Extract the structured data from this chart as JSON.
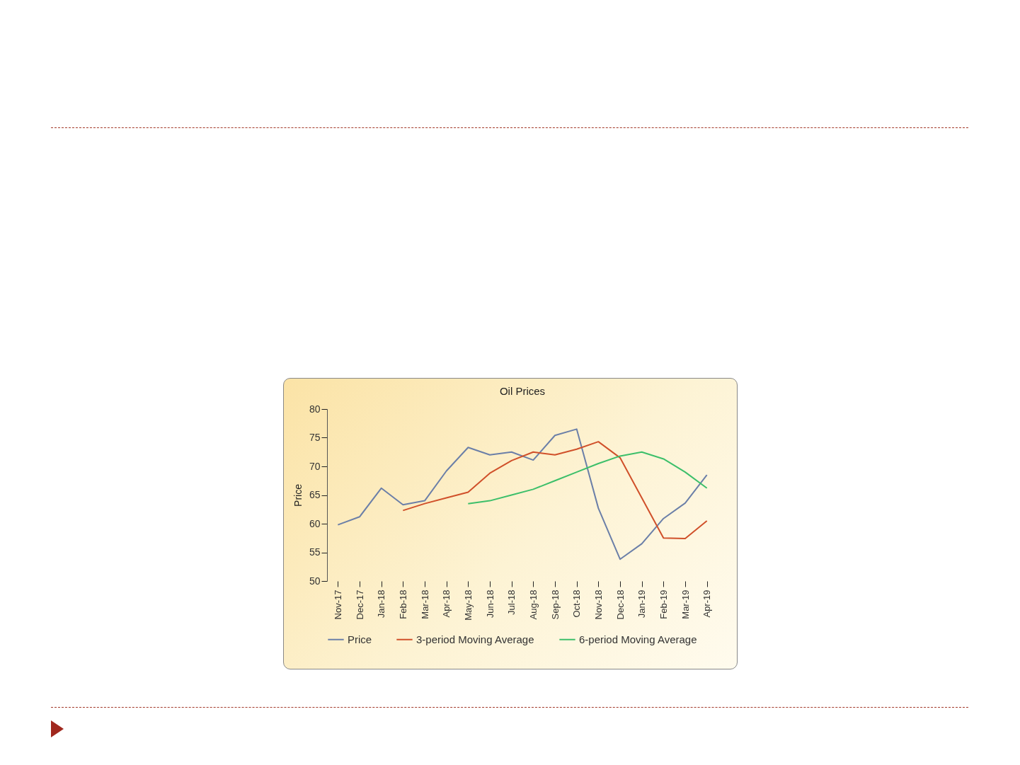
{
  "chart_data": {
    "type": "line",
    "title": "Oil Prices",
    "ylabel": "Price",
    "categories": [
      "Nov-17",
      "Dec-17",
      "Jan-18",
      "Feb-18",
      "Mar-18",
      "Apr-18",
      "May-18",
      "Jun-18",
      "Jul-18",
      "Aug-18",
      "Sep-18",
      "Oct-18",
      "Nov-18",
      "Dec-18",
      "Jan-19",
      "Feb-19",
      "Mar-19",
      "Apr-19"
    ],
    "series": [
      {
        "name": "Price",
        "color": "#6b7fa8",
        "values": [
          59.8,
          61.2,
          66.2,
          63.3,
          64.0,
          69.2,
          73.3,
          72.0,
          72.5,
          71.1,
          75.4,
          76.5,
          62.7,
          53.8,
          56.5,
          60.9,
          63.6,
          68.5
        ]
      },
      {
        "name": "3-period Moving Average",
        "color": "#d0502a",
        "values": [
          null,
          null,
          null,
          62.3,
          63.5,
          64.5,
          65.5,
          68.8,
          71.0,
          72.5,
          72.0,
          73.0,
          74.3,
          71.5,
          64.5,
          57.5,
          57.4,
          60.5
        ]
      },
      {
        "name": "6-period Moving Average",
        "color": "#3cbf6a",
        "values": [
          null,
          null,
          null,
          null,
          null,
          null,
          63.5,
          64.0,
          65.0,
          66.0,
          67.5,
          69.0,
          70.5,
          71.8,
          72.5,
          71.3,
          69.0,
          66.2
        ]
      }
    ],
    "ylim": [
      50,
      80
    ],
    "yticks": [
      50,
      55,
      60,
      65,
      70,
      75,
      80
    ],
    "grid": false,
    "legend": "bottom",
    "marker": "none",
    "line_style": "solid"
  }
}
